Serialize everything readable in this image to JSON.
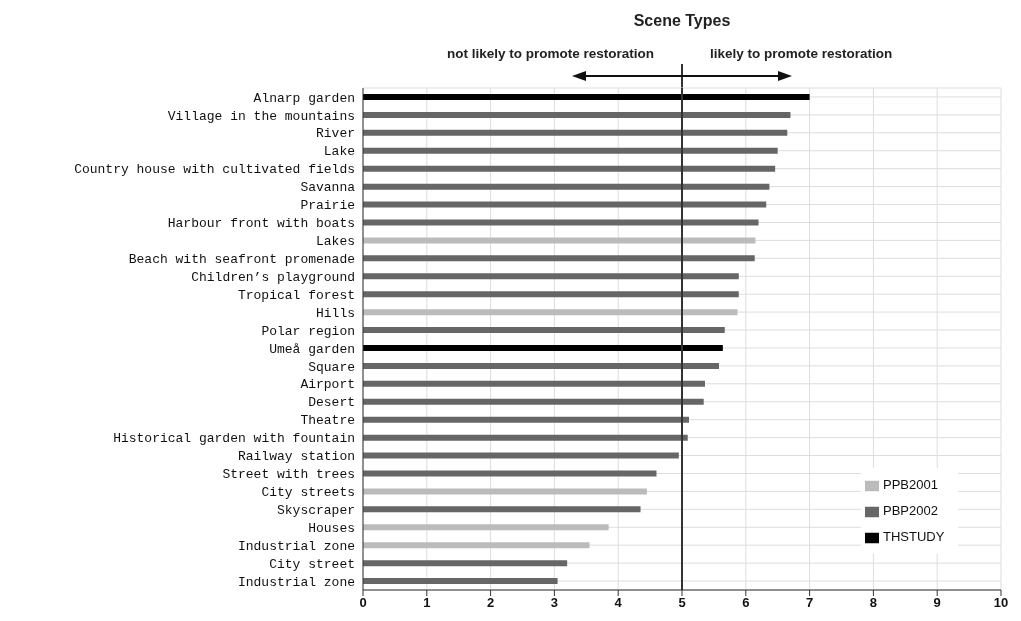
{
  "chart_data": {
    "type": "bar",
    "orientation": "horizontal",
    "stacked": true,
    "title": "Scene Types",
    "annotations": [
      "not likely to promote restoration",
      "likely to promote restoration"
    ],
    "categories": [
      "Alnarp garden",
      "Village in the mountains",
      "River",
      "Lake",
      "Country house with cultivated fields",
      "Savanna",
      "Prairie",
      "Harbour front with boats",
      "Lakes",
      "Beach with seafront promenade",
      "Children’s playground",
      "Tropical forest",
      "Hills",
      "Polar region",
      "Umeå garden",
      "Square",
      "Airport",
      "Desert",
      "Theatre",
      "Historical garden with fountain",
      "Railway station",
      "Street with trees",
      "City streets",
      "Skyscraper",
      "Houses",
      "Industrial zone",
      "City street",
      "Industrial zone"
    ],
    "series": [
      {
        "name": "PPB2001",
        "color": "#bbbbbb",
        "values": [
          null,
          null,
          null,
          null,
          null,
          null,
          null,
          null,
          6.15,
          null,
          null,
          null,
          5.87,
          null,
          null,
          null,
          null,
          null,
          null,
          null,
          null,
          null,
          4.45,
          null,
          3.85,
          3.55,
          null,
          null
        ]
      },
      {
        "name": "PBP2002",
        "color": "#666666",
        "values": [
          null,
          6.7,
          6.65,
          6.5,
          6.46,
          6.37,
          6.32,
          6.2,
          null,
          6.14,
          5.89,
          5.89,
          null,
          5.67,
          null,
          5.58,
          5.36,
          5.34,
          5.11,
          5.09,
          4.95,
          4.6,
          null,
          4.35,
          null,
          null,
          3.2,
          3.05
        ]
      },
      {
        "name": "THSTUDY",
        "color": "#000000",
        "values": [
          7.0,
          null,
          null,
          null,
          null,
          null,
          null,
          null,
          null,
          null,
          null,
          null,
          null,
          null,
          5.64,
          null,
          null,
          null,
          null,
          null,
          null,
          null,
          null,
          null,
          null,
          null,
          null,
          null
        ]
      }
    ],
    "xlim": [
      0,
      10
    ],
    "xticks": [
      0,
      1,
      2,
      3,
      4,
      5,
      6,
      7,
      8,
      9,
      10
    ],
    "ref_lines": [
      {
        "axis": "x",
        "value": 5,
        "color": "#333333"
      }
    ],
    "grid": true,
    "legend": "bottom right"
  }
}
